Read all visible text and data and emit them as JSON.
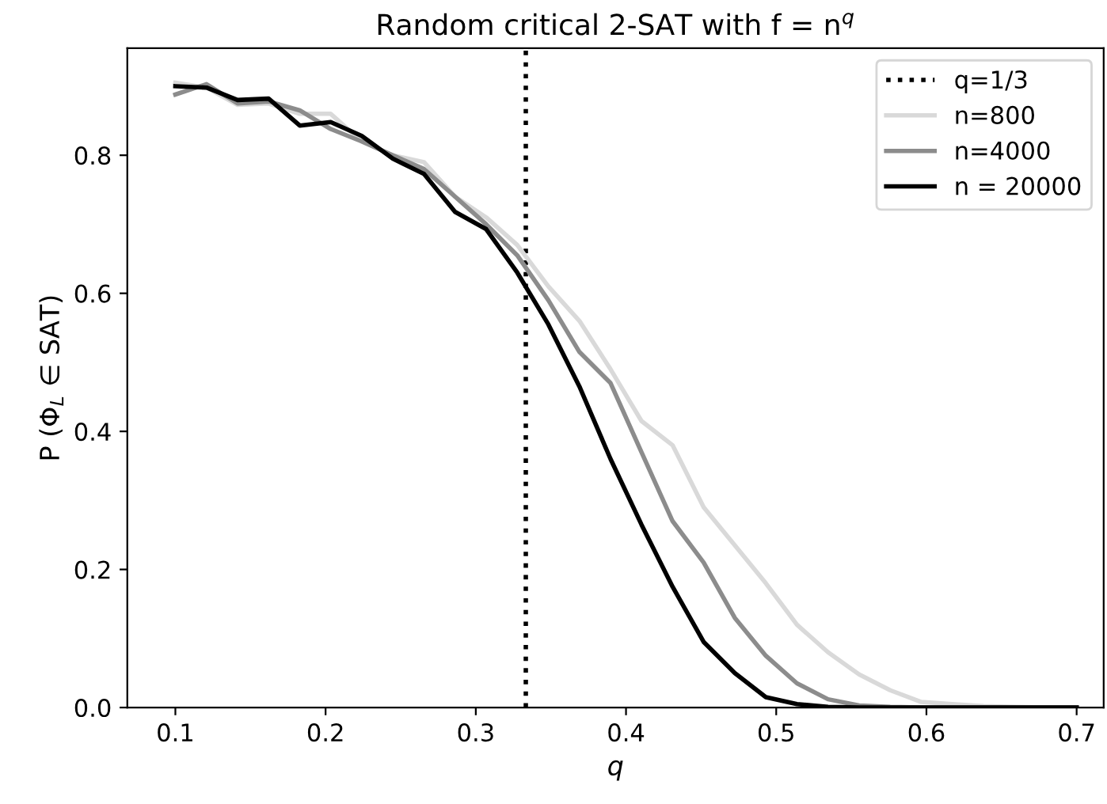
{
  "chart_data": {
    "type": "line",
    "title": "Random critical 2-SAT with f = n$^{q}$",
    "xlabel": "q",
    "ylabel": "P (Φ$_{L}$ ∈ SAT)",
    "x": [
      0.1,
      0.1207,
      0.1414,
      0.1621,
      0.1828,
      0.2034,
      0.2241,
      0.2448,
      0.2655,
      0.2862,
      0.3069,
      0.3276,
      0.3483,
      0.369,
      0.3897,
      0.4103,
      0.431,
      0.4517,
      0.4724,
      0.4931,
      0.5138,
      0.5345,
      0.5552,
      0.5759,
      0.5966,
      0.6172,
      0.6379,
      0.6586,
      0.6793,
      0.7
    ],
    "series": [
      {
        "name": "q=1/3",
        "type": "line",
        "line_style": "dotted",
        "color": "#000000",
        "x": [
          0.3333,
          0.3333
        ],
        "values": [
          0,
          0.955
        ]
      },
      {
        "name": "n=800",
        "color": "#d9d9d9",
        "values": [
          0.905,
          0.898,
          0.873,
          0.875,
          0.86,
          0.86,
          0.82,
          0.8,
          0.79,
          0.74,
          0.71,
          0.67,
          0.61,
          0.56,
          0.49,
          0.415,
          0.38,
          0.29,
          0.235,
          0.18,
          0.12,
          0.08,
          0.048,
          0.025,
          0.008,
          0.005,
          0.002,
          0.001,
          0,
          0
        ]
      },
      {
        "name": "n=4000",
        "color": "#8c8c8c",
        "values": [
          0.888,
          0.903,
          0.875,
          0.878,
          0.865,
          0.838,
          0.82,
          0.8,
          0.78,
          0.74,
          0.7,
          0.655,
          0.59,
          0.515,
          0.47,
          0.37,
          0.27,
          0.21,
          0.13,
          0.075,
          0.035,
          0.012,
          0.003,
          0.001,
          0,
          0,
          0,
          0,
          0,
          0
        ]
      },
      {
        "name": "n = 20000",
        "color": "#000000",
        "values": [
          0.9,
          0.898,
          0.88,
          0.882,
          0.843,
          0.848,
          0.828,
          0.795,
          0.773,
          0.718,
          0.693,
          0.63,
          0.555,
          0.465,
          0.36,
          0.265,
          0.175,
          0.095,
          0.05,
          0.015,
          0.005,
          0.001,
          0,
          0,
          0,
          0,
          0,
          0,
          0,
          0
        ]
      }
    ],
    "xlim": [
      0.068,
      0.718
    ],
    "ylim": [
      0,
      0.955
    ],
    "xticks": [
      0.1,
      0.2,
      0.3,
      0.4,
      0.5,
      0.6,
      0.7
    ],
    "yticks": [
      {
        "value": 0,
        "label": "0.0"
      },
      0.2,
      0.4,
      0.6,
      0.8
    ],
    "legend": "top right",
    "grid": false,
    "marker": "none",
    "line_style": "solid"
  }
}
